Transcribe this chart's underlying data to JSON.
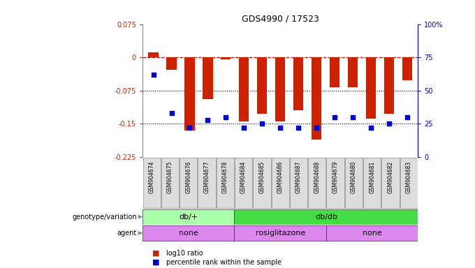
{
  "title": "GDS4990 / 17523",
  "samples": [
    "GSM904674",
    "GSM904675",
    "GSM904676",
    "GSM904677",
    "GSM904678",
    "GSM904684",
    "GSM904685",
    "GSM904686",
    "GSM904687",
    "GSM904688",
    "GSM904679",
    "GSM904680",
    "GSM904681",
    "GSM904682",
    "GSM904683"
  ],
  "log10_ratio": [
    0.012,
    -0.028,
    -0.165,
    -0.095,
    -0.005,
    -0.145,
    -0.128,
    -0.145,
    -0.12,
    -0.185,
    -0.068,
    -0.068,
    -0.138,
    -0.128,
    -0.052
  ],
  "percentile": [
    62,
    33,
    22,
    28,
    30,
    22,
    25,
    22,
    22,
    22,
    30,
    30,
    22,
    25,
    30
  ],
  "ylim_left": [
    -0.225,
    0.075
  ],
  "ylim_right": [
    0,
    100
  ],
  "yticks_left": [
    0.075,
    0.0,
    -0.075,
    -0.15,
    -0.225
  ],
  "yticks_right": [
    100,
    75,
    50,
    25,
    0
  ],
  "bar_color": "#cc2200",
  "dot_color": "#0000cc",
  "dashed_color": "#cc0000",
  "dotted_color": "#000000",
  "bg_color": "#ffffff",
  "sample_cell_color": "#dddddd",
  "genotype_groups": [
    {
      "label": "db/+",
      "start": 0,
      "end": 5,
      "color": "#aaffaa"
    },
    {
      "label": "db/db",
      "start": 5,
      "end": 15,
      "color": "#44dd44"
    }
  ],
  "agent_groups": [
    {
      "label": "none",
      "start": 0,
      "end": 5,
      "color": "#dd88ee"
    },
    {
      "label": "rosiglitazone",
      "start": 5,
      "end": 10,
      "color": "#dd88ee"
    },
    {
      "label": "none",
      "start": 10,
      "end": 15,
      "color": "#dd88ee"
    }
  ],
  "legend": [
    {
      "label": "log10 ratio",
      "color": "#cc2200"
    },
    {
      "label": "percentile rank within the sample",
      "color": "#0000cc"
    }
  ]
}
